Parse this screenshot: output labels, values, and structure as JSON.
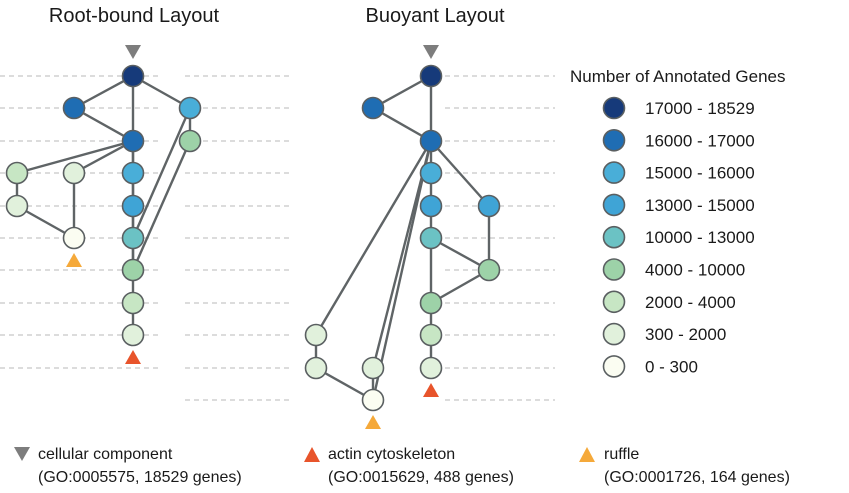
{
  "titles": {
    "left": "Root-bound Layout",
    "right": "Buoyant Layout"
  },
  "legend": {
    "title": "Number of Annotated Genes",
    "bins": [
      {
        "label": "17000 - 18529",
        "color": "#163a7a"
      },
      {
        "label": "16000 - 17000",
        "color": "#1f6db3"
      },
      {
        "label": "15000 - 16000",
        "color": "#49aed8"
      },
      {
        "label": "13000 - 15000",
        "color": "#3fa4d6"
      },
      {
        "label": "10000 - 13000",
        "color": "#6bc2c4"
      },
      {
        "label": "4000 - 10000",
        "color": "#9dd2a8"
      },
      {
        "label": "2000 - 4000",
        "color": "#c7e6c4"
      },
      {
        "label": "300 - 2000",
        "color": "#e1f1dc"
      },
      {
        "label": "0 - 300",
        "color": "#fbfdf2"
      }
    ]
  },
  "footnotes": [
    {
      "name": "cellular component",
      "detail": "(GO:0005575, 18529 genes)",
      "marker": "triangle-down",
      "color": "#7d7d7d"
    },
    {
      "name": "actin cytoskeleton",
      "detail": "(GO:0015629, 488 genes)",
      "marker": "triangle-up",
      "color": "#e8542b"
    },
    {
      "name": "ruffle",
      "detail": "(GO:0001726, 164 genes)",
      "marker": "triangle-up",
      "color": "#f5a93a"
    }
  ],
  "colors": {
    "edge": "#5f6466",
    "node_stroke": "#5a5f61",
    "gridline": "#c8c8c8"
  }
}
